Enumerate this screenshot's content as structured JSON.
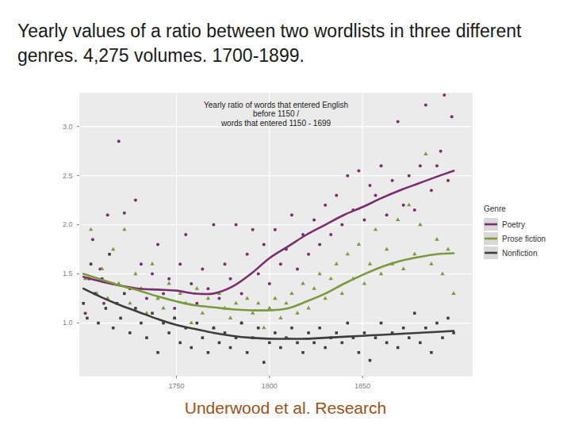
{
  "heading": "Yearly values of a ratio between two wordlists in three different genres. 4,275 volumes. 1700-1899.",
  "caption": "Underwood et al. Research",
  "chart_data": {
    "type": "scatter",
    "title": "Yearly ratio of words that entered English\nbefore 1150 /\nwords that entered 1150 - 1699",
    "legend_title": "Genre",
    "legend": "right",
    "grid": true,
    "xlim": [
      1698,
      1909
    ],
    "xticks": [
      1750,
      1800,
      1850
    ],
    "ylim": [
      0.46,
      3.34
    ],
    "yticks": [
      {
        "value": 1,
        "label": "1.0"
      },
      {
        "value": 1.5,
        "label": "1.5"
      },
      {
        "value": 2,
        "label": "2.0"
      },
      {
        "value": 2.5,
        "label": "2.5"
      },
      {
        "value": 3,
        "label": "3.0"
      }
    ],
    "series": [
      {
        "name": "Poetry",
        "color": "#7b2d6e",
        "marker": "circle",
        "points": {
          "x": [
            1701,
            1703,
            1705,
            1707,
            1709,
            1711,
            1713,
            1716,
            1719,
            1722,
            1725,
            1728,
            1731,
            1734,
            1737,
            1740,
            1743,
            1746,
            1749,
            1752,
            1755,
            1758,
            1761,
            1764,
            1767,
            1770,
            1773,
            1776,
            1779,
            1782,
            1785,
            1788,
            1791,
            1794,
            1797,
            1800,
            1803,
            1806,
            1809,
            1812,
            1815,
            1818,
            1821,
            1824,
            1827,
            1830,
            1833,
            1836,
            1839,
            1842,
            1845,
            1848,
            1851,
            1854,
            1857,
            1860,
            1863,
            1866,
            1869,
            1872,
            1875,
            1878,
            1881,
            1884,
            1887,
            1890,
            1892,
            1894,
            1896,
            1898
          ],
          "values": [
            1.1,
            1.45,
            1.85,
            1.3,
            1.55,
            1.2,
            2.1,
            1.4,
            2.85,
            2.12,
            1.35,
            2.25,
            1.6,
            1.25,
            1.5,
            1.8,
            1.3,
            1.45,
            1.15,
            1.6,
            1.9,
            1.4,
            1.2,
            1.55,
            1.35,
            2.0,
            1.25,
            1.6,
            1.45,
            2.0,
            1.3,
            1.7,
            1.95,
            1.5,
            1.8,
            1.4,
            1.95,
            1.6,
            1.75,
            2.1,
            1.55,
            1.9,
            1.7,
            2.05,
            1.8,
            2.2,
            1.9,
            2.3,
            2.0,
            2.5,
            2.15,
            2.55,
            2.05,
            2.4,
            2.3,
            2.6,
            2.1,
            2.45,
            3.05,
            2.2,
            2.5,
            2.15,
            2.6,
            3.22,
            2.35,
            2.6,
            2.75,
            3.32,
            2.45,
            3.1
          ]
        },
        "trend": {
          "x": [
            1700,
            1710,
            1720,
            1730,
            1740,
            1750,
            1760,
            1770,
            1780,
            1790,
            1800,
            1810,
            1820,
            1830,
            1840,
            1850,
            1860,
            1870,
            1880,
            1890,
            1899
          ],
          "values": [
            1.47,
            1.42,
            1.38,
            1.35,
            1.34,
            1.33,
            1.3,
            1.3,
            1.37,
            1.5,
            1.66,
            1.78,
            1.9,
            2.0,
            2.1,
            2.18,
            2.27,
            2.35,
            2.42,
            2.49,
            2.55
          ]
        }
      },
      {
        "name": "Prose fiction",
        "color": "#7a9a3c",
        "marker": "triangle",
        "points": {
          "x": [
            1701,
            1704,
            1707,
            1710,
            1713,
            1716,
            1719,
            1722,
            1725,
            1728,
            1731,
            1734,
            1737,
            1740,
            1743,
            1746,
            1749,
            1752,
            1755,
            1758,
            1761,
            1764,
            1767,
            1770,
            1773,
            1776,
            1779,
            1782,
            1785,
            1788,
            1791,
            1794,
            1797,
            1800,
            1803,
            1806,
            1809,
            1812,
            1815,
            1818,
            1821,
            1824,
            1827,
            1830,
            1833,
            1836,
            1839,
            1842,
            1845,
            1848,
            1851,
            1854,
            1857,
            1860,
            1863,
            1866,
            1869,
            1872,
            1875,
            1878,
            1881,
            1884,
            1887,
            1890,
            1893,
            1896,
            1899
          ],
          "values": [
            1.45,
            1.95,
            1.3,
            1.55,
            1.25,
            1.75,
            1.4,
            1.95,
            1.2,
            1.5,
            1.35,
            1.1,
            1.6,
            1.25,
            1.15,
            1.4,
            1.05,
            1.3,
            1.2,
            1.0,
            1.35,
            1.1,
            1.25,
            0.95,
            1.3,
            1.15,
            1.05,
            1.2,
            1.0,
            1.25,
            1.1,
            1.2,
            0.95,
            1.15,
            1.25,
            1.05,
            1.2,
            1.3,
            1.1,
            1.4,
            1.15,
            1.35,
            1.5,
            1.25,
            1.45,
            1.6,
            1.3,
            1.7,
            1.45,
            1.8,
            1.4,
            1.6,
            1.95,
            1.5,
            1.75,
            1.6,
            2.05,
            1.55,
            2.2,
            1.7,
            2.0,
            2.72,
            1.6,
            1.85,
            1.5,
            1.75,
            1.3
          ]
        },
        "trend": {
          "x": [
            1700,
            1710,
            1720,
            1730,
            1740,
            1750,
            1760,
            1770,
            1780,
            1790,
            1800,
            1810,
            1820,
            1830,
            1840,
            1850,
            1860,
            1870,
            1880,
            1890,
            1899
          ],
          "values": [
            1.5,
            1.44,
            1.38,
            1.33,
            1.27,
            1.22,
            1.18,
            1.16,
            1.14,
            1.13,
            1.13,
            1.15,
            1.22,
            1.3,
            1.4,
            1.49,
            1.57,
            1.63,
            1.67,
            1.7,
            1.71
          ]
        }
      },
      {
        "name": "Nonfiction",
        "color": "#3d3d3d",
        "marker": "square",
        "points": {
          "x": [
            1700,
            1702,
            1704,
            1706,
            1708,
            1710,
            1712,
            1714,
            1716,
            1718,
            1720,
            1722,
            1725,
            1728,
            1731,
            1734,
            1737,
            1740,
            1743,
            1746,
            1749,
            1752,
            1755,
            1758,
            1761,
            1764,
            1767,
            1770,
            1773,
            1776,
            1779,
            1782,
            1785,
            1788,
            1791,
            1794,
            1797,
            1800,
            1803,
            1806,
            1809,
            1812,
            1815,
            1818,
            1821,
            1824,
            1827,
            1830,
            1833,
            1836,
            1839,
            1842,
            1845,
            1848,
            1851,
            1854,
            1857,
            1860,
            1863,
            1866,
            1869,
            1872,
            1875,
            1878,
            1881,
            1884,
            1887,
            1890,
            1893,
            1896,
            1899
          ],
          "values": [
            1.2,
            1.05,
            1.6,
            1.3,
            1.0,
            1.45,
            1.15,
            1.7,
            0.95,
            1.2,
            1.05,
            1.3,
            0.9,
            1.15,
            1.0,
            0.85,
            1.1,
            0.7,
            1.0,
            0.9,
            1.05,
            0.8,
            0.95,
            0.75,
            1.0,
            0.85,
            0.7,
            0.95,
            0.8,
            0.9,
            0.75,
            0.85,
            1.0,
            0.7,
            0.85,
            0.95,
            0.6,
            0.8,
            0.9,
            0.75,
            0.85,
            0.95,
            0.8,
            0.7,
            0.9,
            0.8,
            0.95,
            0.75,
            0.85,
            0.9,
            0.8,
            1.0,
            0.85,
            0.7,
            0.9,
            0.62,
            0.85,
            1.0,
            0.8,
            0.9,
            0.75,
            0.95,
            0.85,
            1.1,
            0.8,
            0.95,
            0.7,
            1.0,
            0.85,
            1.05,
            0.9
          ]
        },
        "trend": {
          "x": [
            1700,
            1710,
            1720,
            1730,
            1740,
            1750,
            1760,
            1770,
            1780,
            1790,
            1800,
            1810,
            1820,
            1830,
            1840,
            1850,
            1860,
            1870,
            1880,
            1890,
            1899
          ],
          "values": [
            1.35,
            1.26,
            1.18,
            1.11,
            1.04,
            0.98,
            0.94,
            0.9,
            0.87,
            0.85,
            0.84,
            0.84,
            0.84,
            0.85,
            0.86,
            0.87,
            0.88,
            0.89,
            0.9,
            0.91,
            0.92
          ]
        }
      }
    ]
  }
}
